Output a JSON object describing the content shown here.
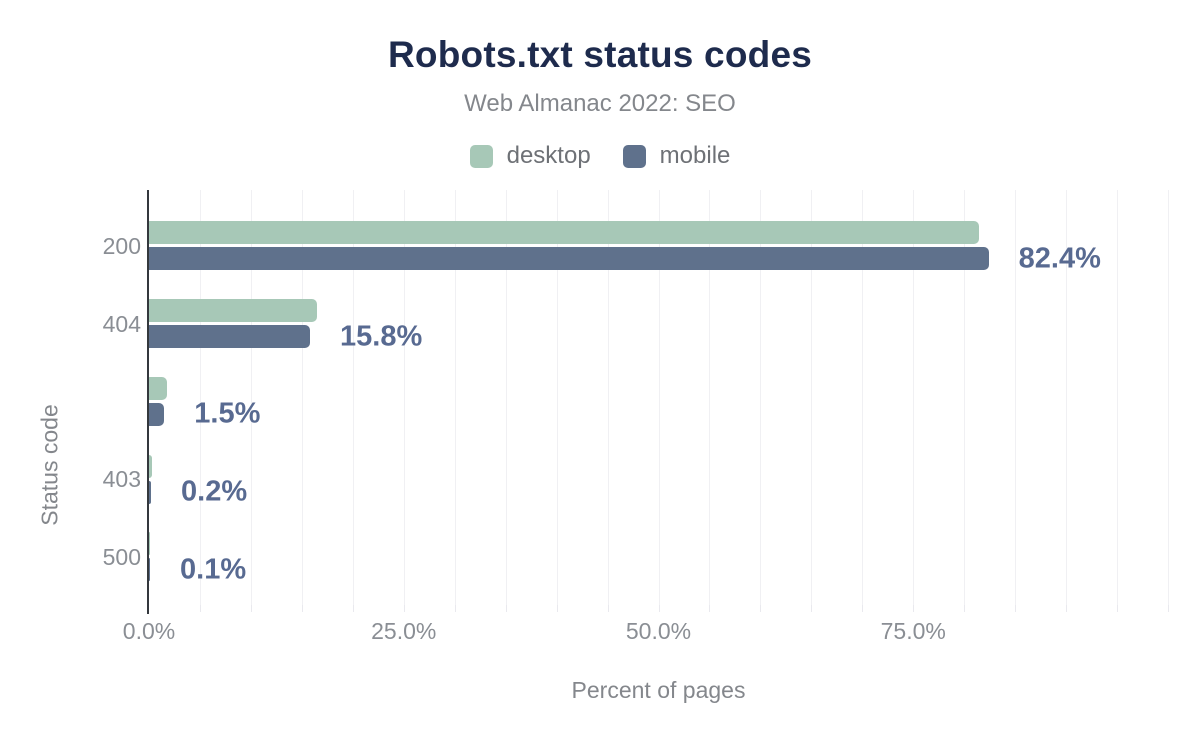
{
  "chart_data": {
    "type": "bar",
    "orientation": "horizontal",
    "title": "Robots.txt status codes",
    "subtitle": "Web Almanac 2022: SEO",
    "categories": [
      "200",
      "404",
      "",
      "403",
      "500"
    ],
    "series": [
      {
        "name": "desktop",
        "color": "#a7c8b7",
        "values": [
          81.5,
          16.5,
          1.8,
          0.3,
          0.1
        ]
      },
      {
        "name": "mobile",
        "color": "#5f718c",
        "values": [
          82.4,
          15.8,
          1.5,
          0.2,
          0.1
        ]
      }
    ],
    "value_labels": {
      "labeled_series": "mobile",
      "texts": [
        "82.4%",
        "15.8%",
        "1.5%",
        "0.2%",
        "0.1%"
      ]
    },
    "xlabel": "Percent of pages",
    "ylabel": "Status code",
    "xlim": [
      0,
      100
    ],
    "x_ticks": [
      {
        "value": 0,
        "label": "0.0%"
      },
      {
        "value": 25,
        "label": "25.0%"
      },
      {
        "value": 50,
        "label": "50.0%"
      },
      {
        "value": 75,
        "label": "75.0%"
      }
    ],
    "gridline_step": 5,
    "grid": true,
    "legend_position": "top",
    "colors": {
      "title": "#1e2b4d",
      "subtitle": "#84878c",
      "axis_labels": "#8a8e94",
      "axis_line": "#34383d",
      "gridline": "#f0f0f3",
      "value_label": "#586a91",
      "desktop": "#a7c8b7",
      "mobile": "#5f718c"
    }
  }
}
